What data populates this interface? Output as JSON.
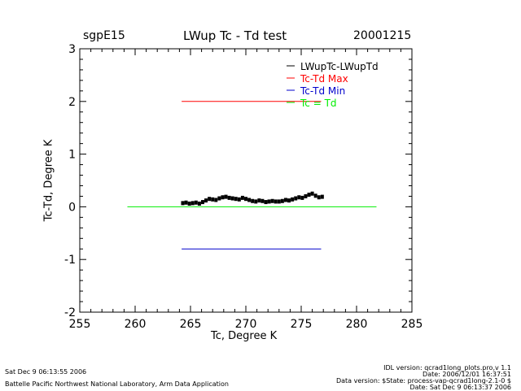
{
  "header": {
    "site": "sgpE15",
    "date": "20001215"
  },
  "footer": {
    "left_line1": "Sat Dec  9 06:13:55 2006",
    "left_line2": "Battelle Pacific Northwest National Laboratory, Arm Data Application",
    "right_line1": "IDL version: qcrad1long_plots.pro,v 1.1",
    "right_line2": "Date: 2006/12/01 16:37:51",
    "right_line3": "Data version: $State: process-vap-qcrad1long-2.1-0 $",
    "right_line4": "Date: Sat Dec  9 06:13:37 2006"
  },
  "chart_data": {
    "type": "scatter",
    "title": "LWup Tc - Td test",
    "xlabel": "Tc, Degree K",
    "ylabel": "Tc-Td, Degree K",
    "xlim": [
      255,
      285
    ],
    "ylim": [
      -2,
      3
    ],
    "xticks": [
      255,
      260,
      265,
      270,
      275,
      280,
      285
    ],
    "yticks": [
      -2,
      -1,
      0,
      1,
      2,
      3
    ],
    "grid": false,
    "legend_position": "top-right",
    "series": [
      {
        "name": "LWupTc-LWupTd",
        "kind": "points",
        "color": "#000000",
        "x": [
          264.3,
          264.6,
          264.9,
          265.2,
          265.5,
          265.8,
          266.1,
          266.4,
          266.7,
          267.0,
          267.3,
          267.6,
          267.9,
          268.2,
          268.5,
          268.8,
          269.1,
          269.4,
          269.7,
          270.0,
          270.3,
          270.6,
          270.9,
          271.2,
          271.5,
          271.8,
          272.1,
          272.4,
          272.7,
          273.0,
          273.3,
          273.6,
          273.9,
          274.2,
          274.5,
          274.8,
          275.1,
          275.4,
          275.7,
          276.0,
          276.3,
          276.6,
          276.9
        ],
        "y": [
          0.07,
          0.08,
          0.06,
          0.07,
          0.08,
          0.06,
          0.09,
          0.12,
          0.15,
          0.14,
          0.13,
          0.16,
          0.18,
          0.19,
          0.17,
          0.16,
          0.15,
          0.14,
          0.17,
          0.15,
          0.13,
          0.11,
          0.1,
          0.12,
          0.11,
          0.09,
          0.1,
          0.11,
          0.1,
          0.1,
          0.11,
          0.13,
          0.12,
          0.14,
          0.16,
          0.18,
          0.17,
          0.2,
          0.23,
          0.25,
          0.21,
          0.18,
          0.19
        ]
      },
      {
        "name": "Tc-Td Max",
        "kind": "line",
        "color": "#ff0000",
        "x": [
          264.2,
          276.8
        ],
        "y": [
          2.0,
          2.0
        ]
      },
      {
        "name": "Tc-Td Min",
        "kind": "line",
        "color": "#0000cc",
        "x": [
          264.2,
          276.8
        ],
        "y": [
          -0.8,
          -0.8
        ]
      },
      {
        "name": "Tc = Td",
        "kind": "line",
        "color": "#00ee00",
        "x": [
          259.3,
          281.8
        ],
        "y": [
          0.0,
          0.0
        ]
      }
    ]
  }
}
